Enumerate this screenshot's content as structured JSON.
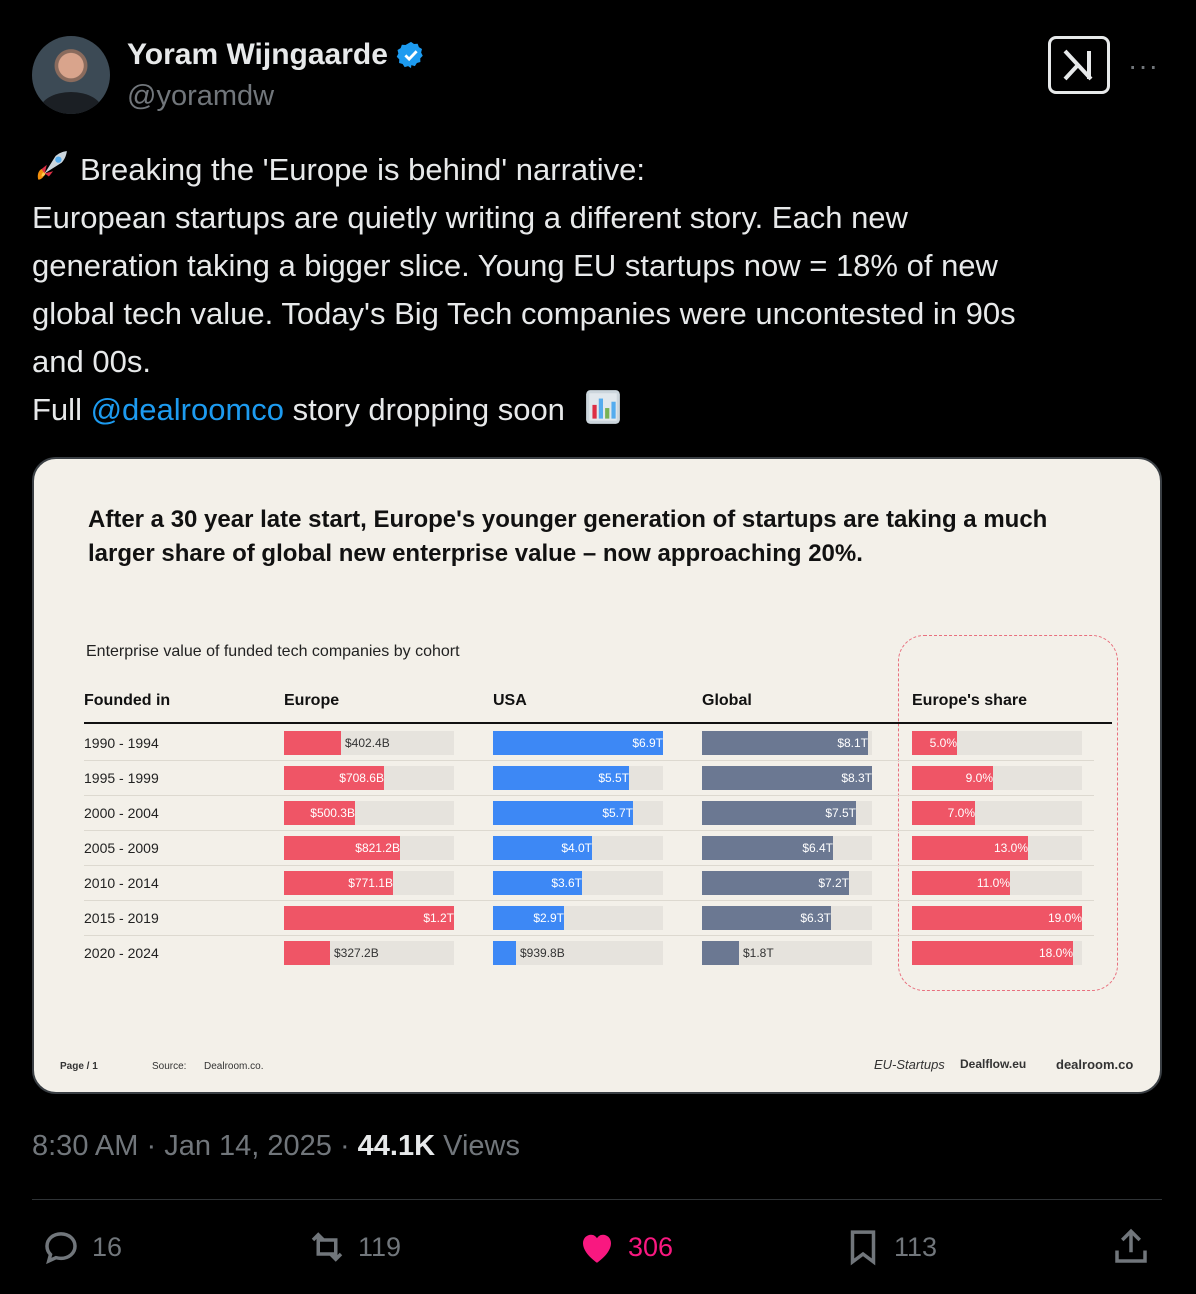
{
  "author": {
    "name": "Yoram Wijngaarde",
    "handle": "@yoramdw",
    "verified_color": "#1d9bf0"
  },
  "header_icons": {
    "grok": "grok-icon",
    "more": "···"
  },
  "tweet": {
    "line1": "Breaking the 'Europe is behind' narrative:",
    "line2": "European startups are quietly writing a different story. Each new",
    "line3": "generation taking a bigger slice. Young EU startups now = 18% of new",
    "line4": "global tech value. Today's Big Tech companies were uncontested in 90s",
    "line5": "and 00s.",
    "line6_pre": "Full ",
    "mention": "@dealroomco",
    "line6_post": " story dropping soon",
    "emoji_start": "rocket-emoji",
    "emoji_end": "bar-chart-emoji"
  },
  "card": {
    "footer_page": "Page / 1",
    "footer_source_label": "Source:",
    "footer_source": "Dealroom.co.",
    "logos": [
      "EU-Startups",
      "Dealflow.eu",
      "dealroom.co"
    ]
  },
  "chart_data": {
    "type": "bar",
    "title": "After a 30 year late start, Europe's younger generation of startups are taking a much larger share of global new enterprise value – now approaching 20%.",
    "subtitle": "Enterprise value of funded tech companies by cohort",
    "row_header": "Founded in",
    "categories": [
      "1990 - 1994",
      "1995 - 1999",
      "2000 - 2004",
      "2005 - 2009",
      "2010 - 2014",
      "2015 - 2019",
      "2020 - 2024"
    ],
    "series": [
      {
        "name": "Europe",
        "color": "#ef5566",
        "values_billion": [
          402.4,
          708.6,
          500.3,
          821.2,
          771.1,
          1200,
          327.2
        ],
        "labels": [
          "$402.4B",
          "$708.6B",
          "$500.3B",
          "$821.2B",
          "$771.1B",
          "$1.2T",
          "$327.2B"
        ],
        "max": 1200
      },
      {
        "name": "USA",
        "color": "#3d88f5",
        "values_billion": [
          6900,
          5500,
          5700,
          4000,
          3600,
          2900,
          939.8
        ],
        "labels": [
          "$6.9T",
          "$5.5T",
          "$5.7T",
          "$4.0T",
          "$3.6T",
          "$2.9T",
          "$939.8B"
        ],
        "max": 6900
      },
      {
        "name": "Global",
        "color": "#6b7892",
        "values_billion": [
          8100,
          8300,
          7500,
          6400,
          7200,
          6300,
          1800
        ],
        "labels": [
          "$8.1T",
          "$8.3T",
          "$7.5T",
          "$6.4T",
          "$7.2T",
          "$6.3T",
          "$1.8T"
        ],
        "max": 8300
      },
      {
        "name": "Europe's share",
        "color": "#ef5566",
        "values_percent": [
          5.0,
          9.0,
          7.0,
          13.0,
          11.0,
          19.0,
          18.0
        ],
        "labels": [
          "5.0%",
          "9.0%",
          "7.0%",
          "13.0%",
          "11.0%",
          "19.0%",
          "18.0%"
        ],
        "max": 19.0
      }
    ]
  },
  "meta": {
    "time": "8:30 AM",
    "date": "Jan 14, 2025",
    "views_count": "44.1K",
    "views_label": "Views"
  },
  "actions": {
    "replies": "16",
    "reposts": "119",
    "likes": "306",
    "bookmarks": "113",
    "like_color": "#f91880"
  }
}
